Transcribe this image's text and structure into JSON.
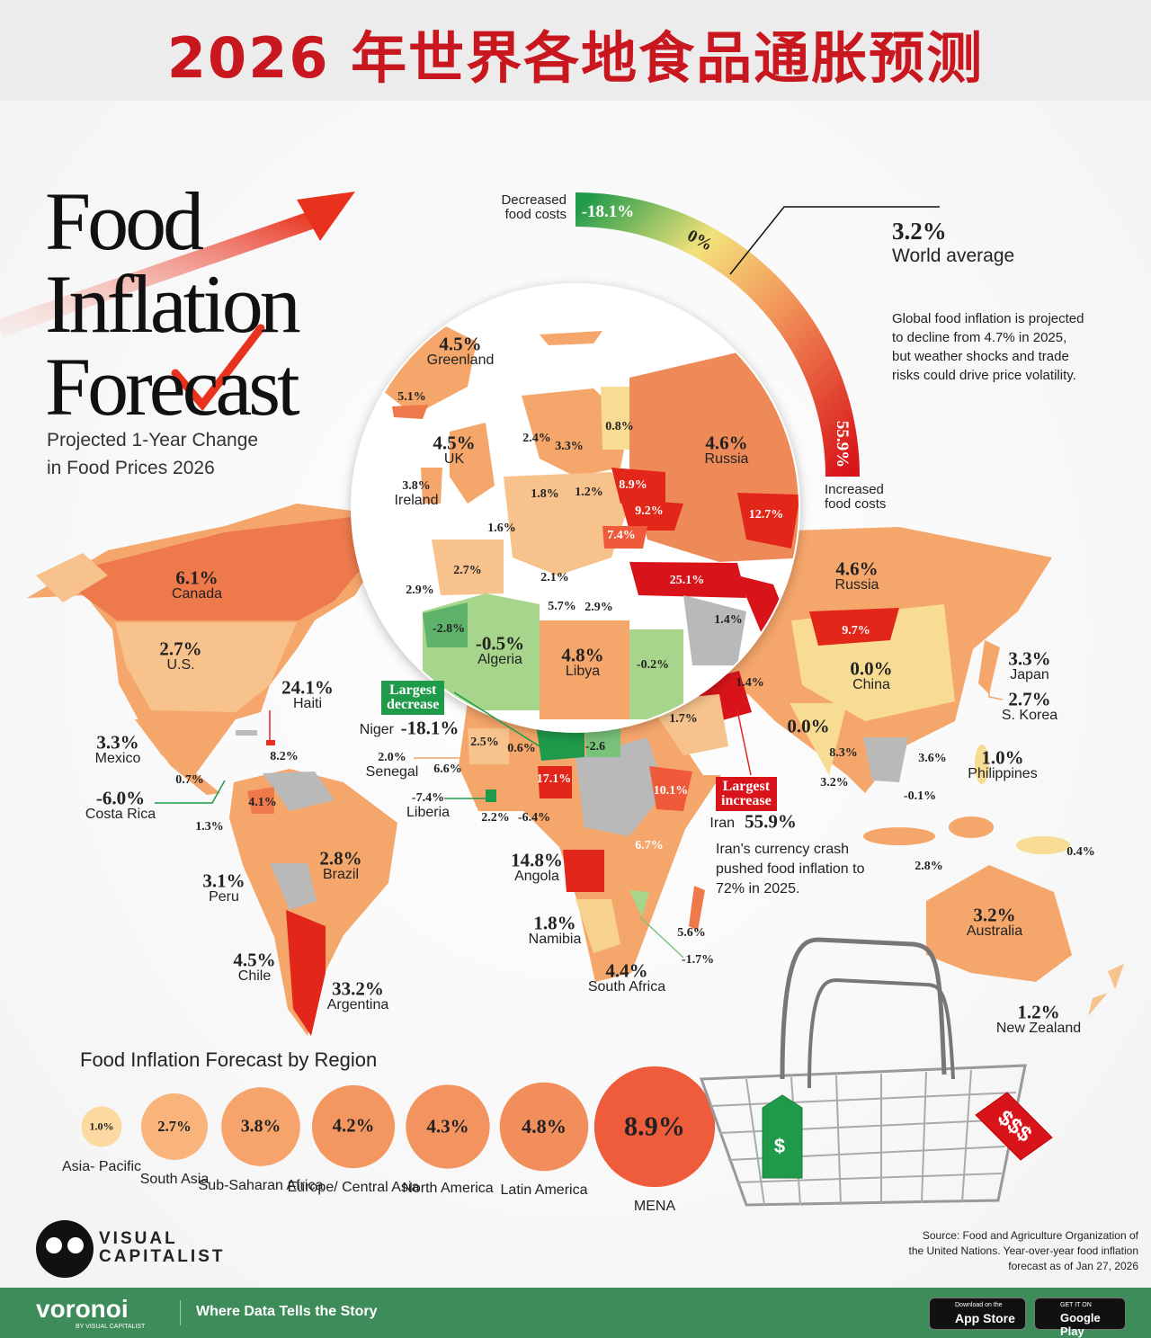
{
  "banner_title": "2026 年世界各地食品通胀预测",
  "header": {
    "title_lines": [
      "Food",
      "Inflation",
      "Forecast"
    ],
    "subtitle": "Projected 1-Year Change\nin Food Prices 2026"
  },
  "gauge": {
    "decreased": "Decreased\nfood costs",
    "min": "-18.1%",
    "mid": "0%",
    "max": "55.9%",
    "increased": "Increased\nfood costs"
  },
  "world_average": {
    "value": "3.2%",
    "label": "World average"
  },
  "note": "Global food inflation is projected to decline from 4.7% in 2025, but weather shocks and trade risks could drive price volatility.",
  "map": {
    "labels": [
      {
        "value": "4.5%",
        "name": "Greenland"
      },
      {
        "value": "5.1%"
      },
      {
        "value": "4.5%",
        "name": "UK"
      },
      {
        "value": "3.8%",
        "name": "Ireland"
      },
      {
        "value": "2.4%"
      },
      {
        "value": "3.3%"
      },
      {
        "value": "0.8%"
      },
      {
        "value": "4.6%",
        "name": "Russia"
      },
      {
        "value": "1.8%"
      },
      {
        "value": "1.2%"
      },
      {
        "value": "8.9%"
      },
      {
        "value": "9.2%"
      },
      {
        "value": "12.7%"
      },
      {
        "value": "1.6%"
      },
      {
        "value": "7.4%"
      },
      {
        "value": "2.7%"
      },
      {
        "value": "2.1%"
      },
      {
        "value": "25.1%"
      },
      {
        "value": "2.9%"
      },
      {
        "value": "5.7%"
      },
      {
        "value": "2.9%"
      },
      {
        "value": "-2.8%"
      },
      {
        "value": "-0.5%",
        "name": "Algeria"
      },
      {
        "value": "4.8%",
        "name": "Libya"
      },
      {
        "value": "-0.2%"
      },
      {
        "value": "1.4%"
      },
      {
        "value": "4.6%",
        "name": "Russia"
      },
      {
        "value": "6.1%",
        "name": "Canada"
      },
      {
        "value": "2.7%",
        "name": "U.S."
      },
      {
        "value": "24.1%",
        "name": "Haiti"
      },
      {
        "value": "3.3%",
        "name": "Mexico"
      },
      {
        "value": "8.2%"
      },
      {
        "value": "0.7%"
      },
      {
        "value": "-6.0%",
        "name": "Costa Rica"
      },
      {
        "value": "1.3%"
      },
      {
        "value": "4.1%"
      },
      {
        "value": "2.8%",
        "name": "Brazil"
      },
      {
        "value": "3.1%",
        "name": "Peru"
      },
      {
        "value": "4.5%",
        "name": "Chile"
      },
      {
        "value": "33.2%",
        "name": "Argentina"
      },
      {
        "value": "3.3%",
        "name": "Japan"
      },
      {
        "value": "2.7%",
        "name": "S. Korea"
      },
      {
        "value": "0.0%",
        "name": "China"
      },
      {
        "value": "9.7%"
      },
      {
        "value": "1.4%"
      },
      {
        "value": "1.7%"
      },
      {
        "value": "0.0%"
      },
      {
        "value": "8.3%"
      },
      {
        "value": "3.2%"
      },
      {
        "value": "3.6%"
      },
      {
        "value": "1.0%",
        "name": "Philippines"
      },
      {
        "value": "-0.1%"
      },
      {
        "value": "0.4%"
      },
      {
        "value": "2.8%"
      },
      {
        "value": "3.2%",
        "name": "Australia"
      },
      {
        "value": "1.2%",
        "name": "New Zealand"
      },
      {
        "value": "-18.1%",
        "name": "Niger"
      },
      {
        "value": "2.5%"
      },
      {
        "value": "0.6%"
      },
      {
        "value": "-2.6"
      },
      {
        "value": "2.0%",
        "name": "Senegal"
      },
      {
        "value": "6.6%"
      },
      {
        "value": "17.1%"
      },
      {
        "value": "10.1%"
      },
      {
        "value": "-7.4%",
        "name": "Liberia"
      },
      {
        "value": "2.2%"
      },
      {
        "value": "-6.4%"
      },
      {
        "value": "6.7%"
      },
      {
        "value": "14.8%",
        "name": "Angola"
      },
      {
        "value": "1.8%",
        "name": "Namibia"
      },
      {
        "value": "5.6%"
      },
      {
        "value": "-1.7%"
      },
      {
        "value": "4.4%",
        "name": "South Africa"
      },
      {
        "value": "55.9%",
        "name": "Iran"
      }
    ]
  },
  "callouts": {
    "largest_decrease": "Largest\ndecrease",
    "largest_increase": "Largest\nincrease",
    "iran_note": "Iran's currency crash pushed food inflation to 72% in 2025."
  },
  "regions": {
    "title": "Food Inflation Forecast by Region",
    "items": [
      {
        "name": "Asia-\nPacific",
        "value": "1.0%"
      },
      {
        "name": "South\nAsia",
        "value": "2.7%"
      },
      {
        "name": "Sub-Saharan\nAfrica",
        "value": "3.8%"
      },
      {
        "name": "Europe/\nCentral Asia",
        "value": "4.2%"
      },
      {
        "name": "North\nAmerica",
        "value": "4.3%"
      },
      {
        "name": "Latin\nAmerica",
        "value": "4.8%"
      },
      {
        "name": "MENA",
        "value": "8.9%"
      }
    ]
  },
  "basket_tags": [
    "$",
    "$$$"
  ],
  "logo": "VISUAL\nCAPITALIST",
  "source": "Source: Food and Agriculture Organization of the United Nations. Year-over-year food inflation forecast as of Jan 27, 2026",
  "footer": {
    "brand": "voronoi",
    "brand_sub": "BY VISUAL CAPITALIST",
    "tagline": "Where Data Tells the Story",
    "app_store_top": "Download on the",
    "app_store": "App Store",
    "google_top": "GET IT ON",
    "google": "Google Play"
  }
}
